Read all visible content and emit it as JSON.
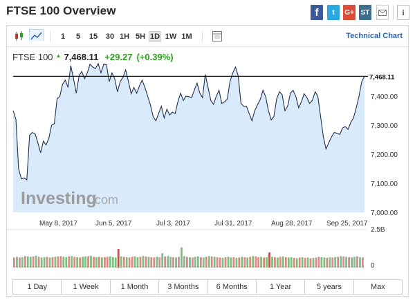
{
  "page": {
    "title": "FTSE 100 Overview"
  },
  "share": {
    "facebook": "f",
    "twitter": "t",
    "googleplus": "G+",
    "stocktwits": "ST",
    "email_icon": "envelope-icon",
    "info_icon": "info-icon"
  },
  "toolbar": {
    "intervals": [
      "1",
      "5",
      "15",
      "30",
      "1H",
      "5H",
      "1D",
      "1W",
      "1M"
    ],
    "active_interval": "1D",
    "technical_chart_label": "Technical Chart",
    "icons": [
      "candlestick-icon",
      "area-chart-icon",
      "table-icon"
    ]
  },
  "quote": {
    "name": "FTSE 100",
    "price": "7,468.11",
    "change": "+29.27",
    "change_pct": "(+0.39%)",
    "direction_icon": "up-arrow-icon"
  },
  "colors": {
    "line": "#1f2f4f",
    "area": "#d9ebfb",
    "up": "#2aa01a",
    "volume_up": "#7fbf7f",
    "volume_down": "#d98a8a",
    "volume_spike": "#c0504d",
    "link": "#2b62a6"
  },
  "watermark": {
    "brand": "Investing",
    "suffix": ".com"
  },
  "chart_data": {
    "type": "area",
    "title": "",
    "xlabel": "",
    "ylabel": "",
    "ylim": [
      7000,
      7500
    ],
    "y_ticks": [
      "7,000.00",
      "7,100.00",
      "7,200.00",
      "7,300.00",
      "7,400.00"
    ],
    "x_ticks": [
      "May 8, 2017",
      "Jun 5, 2017",
      "Jul 3, 2017",
      "Jul 31, 2017",
      "Aug 28, 2017",
      "Sep 25, 2017"
    ],
    "last_price_label": "7,468.11",
    "last_price_value": 7468.11,
    "series": [
      {
        "values": [
          7350,
          7320,
          7150,
          7115,
          7118,
          7112,
          7265,
          7275,
          7270,
          7240,
          7205,
          7245,
          7232,
          7255,
          7300,
          7305,
          7390,
          7400,
          7440,
          7455,
          7430,
          7505,
          7460,
          7410,
          7470,
          7485,
          7460,
          7480,
          7510,
          7500,
          7495,
          7512,
          7480,
          7510,
          7508,
          7450,
          7480,
          7460,
          7415,
          7450,
          7465,
          7490,
          7450,
          7408,
          7430,
          7410,
          7435,
          7455,
          7430,
          7400,
          7370,
          7330,
          7315,
          7340,
          7365,
          7325,
          7355,
          7335,
          7345,
          7340,
          7380,
          7410,
          7385,
          7400,
          7398,
          7395,
          7420,
          7445,
          7410,
          7395,
          7475,
          7430,
          7385,
          7372,
          7400,
          7420,
          7375,
          7380,
          7390,
          7450,
          7480,
          7500,
          7470,
          7375,
          7365,
          7365,
          7340,
          7315,
          7350,
          7370,
          7388,
          7420,
          7398,
          7350,
          7318,
          7330,
          7390,
          7415,
          7405,
          7350,
          7365,
          7410,
          7420,
          7398,
          7360,
          7380,
          7408,
          7395,
          7375,
          7385,
          7415,
          7400,
          7330,
          7260,
          7218,
          7240,
          7260,
          7275,
          7272,
          7268,
          7290,
          7295,
          7285,
          7310,
          7325,
          7360,
          7400,
          7450,
          7468.11
        ]
      }
    ],
    "volume": {
      "max_label": "2.5B",
      "min_label": "0",
      "values": [
        0.7,
        0.75,
        0.7,
        0.72,
        0.8,
        0.78,
        0.75,
        0.78,
        0.82,
        0.75,
        0.7,
        0.72,
        0.75,
        0.7,
        0.72,
        0.75,
        0.78,
        0.8,
        0.75,
        0.72,
        0.78,
        0.8,
        0.75,
        0.72,
        0.7,
        0.75,
        0.78,
        0.8,
        0.82,
        0.75,
        0.72,
        0.75,
        0.7,
        0.72,
        0.75,
        0.78,
        0.72,
        0.7,
        1.3,
        0.78,
        0.75,
        0.72,
        0.7,
        0.75,
        0.78,
        0.72,
        0.75,
        0.8,
        0.78,
        0.75,
        0.72,
        0.7,
        0.75,
        0.72,
        1.0,
        0.78,
        0.8,
        0.75,
        0.72,
        0.7,
        0.75,
        1.4,
        0.8,
        0.75,
        0.72,
        0.7,
        0.75,
        0.78,
        0.72,
        0.7,
        0.75,
        0.8,
        0.78,
        0.75,
        0.72,
        0.7,
        0.68,
        0.72,
        0.75,
        0.7,
        0.72,
        0.68,
        0.7,
        0.75,
        0.72,
        0.7,
        0.75,
        0.8,
        0.78,
        0.72,
        0.75,
        0.7,
        0.72,
        1.05,
        0.75,
        0.72,
        0.7,
        0.75,
        0.78,
        0.72,
        0.7,
        0.72,
        0.68,
        0.65,
        0.7,
        0.72,
        0.68,
        0.7,
        0.65,
        0.68,
        0.7,
        0.75,
        0.72,
        0.7,
        0.68,
        0.72,
        0.7,
        0.72,
        0.75,
        0.8,
        0.78,
        0.75,
        0.72,
        0.7,
        0.75,
        0.78,
        0.72,
        0.7
      ],
      "down_flags": [
        1,
        0,
        1,
        0,
        1,
        0,
        0,
        1,
        0,
        1,
        0,
        0,
        1,
        0,
        1,
        0,
        1,
        1,
        0,
        0,
        1,
        0,
        1,
        0,
        1,
        0,
        0,
        1,
        0,
        1,
        0,
        1,
        0,
        1,
        1,
        0,
        0,
        0,
        1,
        0,
        1,
        0,
        1,
        1,
        0,
        0,
        1,
        0,
        1,
        0,
        1,
        1,
        0,
        1,
        0,
        1,
        0,
        0,
        1,
        0,
        1,
        1,
        0,
        1,
        0,
        1,
        0,
        0,
        1,
        0,
        1,
        0,
        1,
        0,
        1,
        1,
        0,
        1,
        0,
        0,
        1,
        0,
        1,
        0,
        1,
        0,
        1,
        0,
        1,
        1,
        0,
        1,
        0,
        1,
        0,
        1,
        0,
        1,
        0,
        1,
        0,
        0,
        1,
        0,
        1,
        0,
        1,
        0,
        1,
        0,
        1,
        1,
        0,
        0,
        1,
        0,
        1,
        0,
        1,
        0,
        1,
        0,
        1,
        0,
        0,
        1,
        0,
        1,
        0
      ],
      "spike_indices": [
        38,
        61,
        93
      ]
    }
  },
  "ranges": [
    "1 Day",
    "1 Week",
    "1 Month",
    "3 Months",
    "6 Months",
    "1 Year",
    "5 years",
    "Max"
  ]
}
